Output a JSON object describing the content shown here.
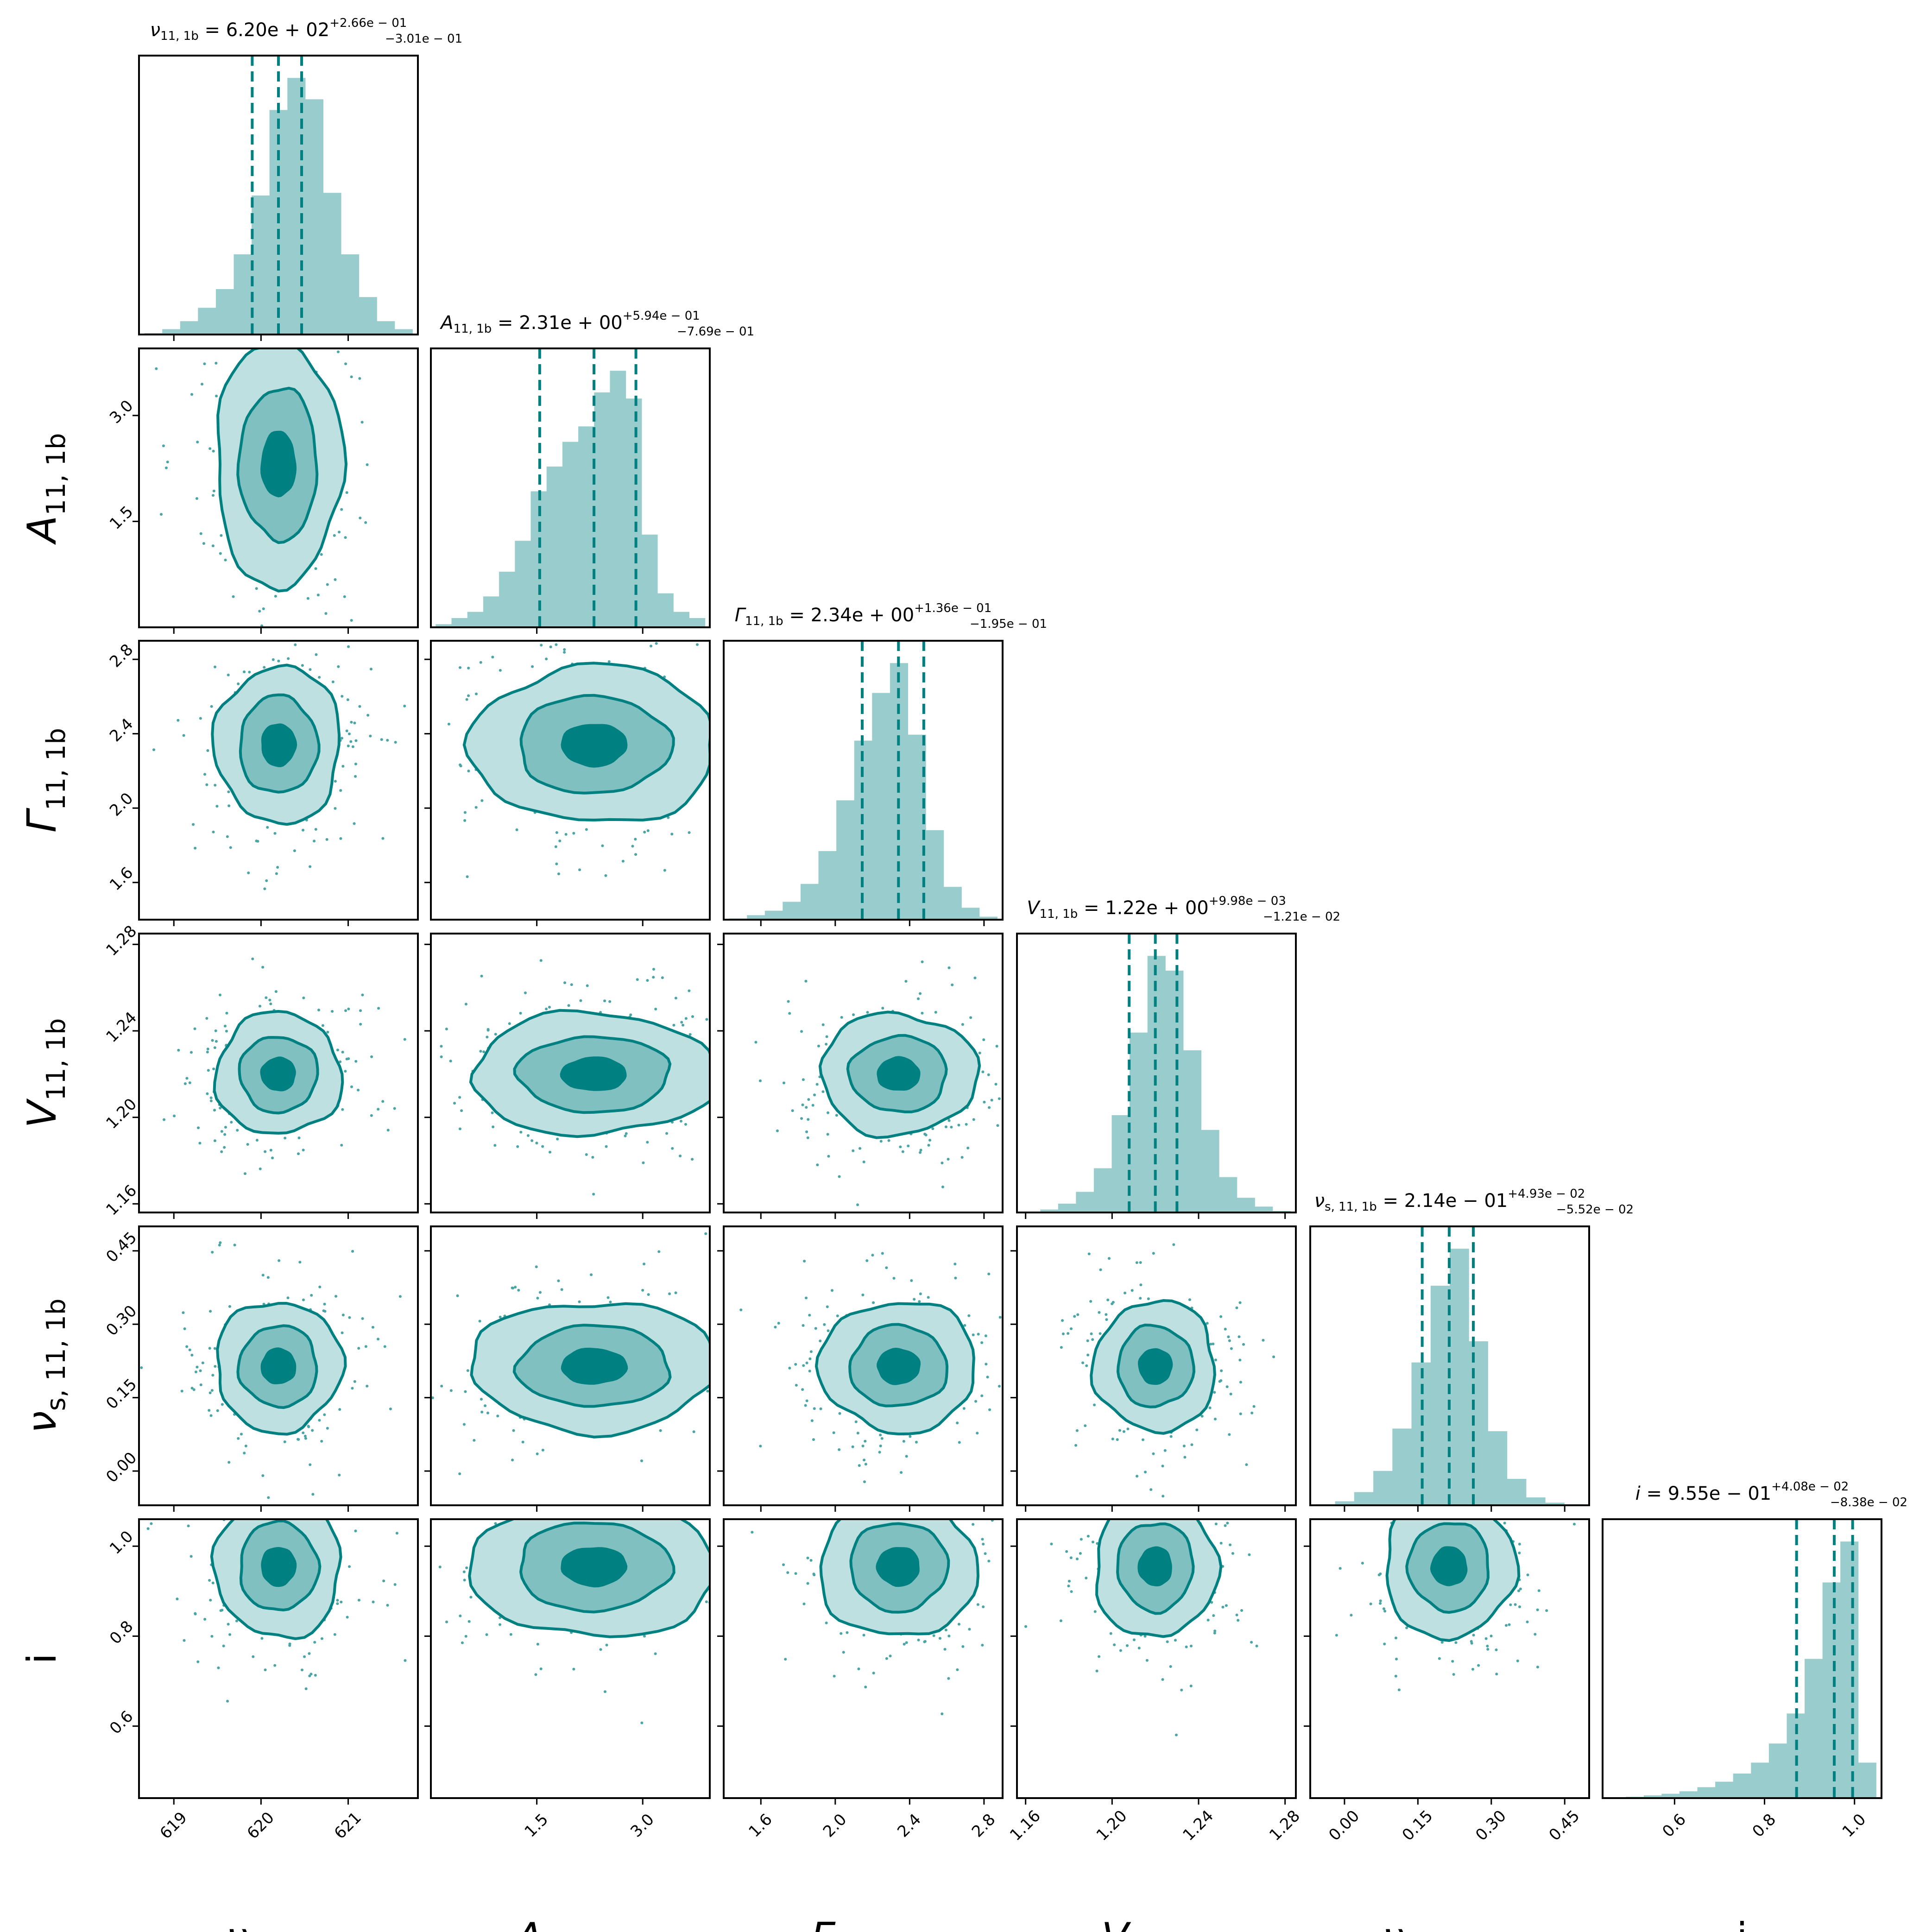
{
  "chart_data": {
    "type": "corner",
    "colors": {
      "accent": "#008080",
      "hist_fill": "#99cccc",
      "level1": "#bfe0e0",
      "level2": "#80c0c0",
      "level3": "#008080",
      "frame": "#000000"
    },
    "parameters": [
      {
        "name": "nu",
        "label_main": "ν",
        "label_sub": "11, 1b",
        "title_sym": "ν",
        "title_sub": "11, 1b",
        "title_value": "6.20e + 02",
        "title_plus": "+2.66e − 01",
        "title_minus": "−3.01e − 01",
        "median": 620.2,
        "q16": 619.899,
        "q84": 620.466,
        "range": [
          618.6,
          621.8
        ],
        "ticks": [
          619,
          620,
          621
        ],
        "tick_labels": [
          "619",
          "620",
          "621"
        ],
        "hist": [
          0.005,
          0.02,
          0.05,
          0.1,
          0.17,
          0.3,
          0.52,
          0.84,
          0.96,
          0.88,
          0.53,
          0.3,
          0.14,
          0.05,
          0.02
        ]
      },
      {
        "name": "A",
        "label_main": "A",
        "label_sub": "11, 1b",
        "title_sym": "A",
        "title_sub": "11, 1b",
        "title_value": "2.31e + 00",
        "title_plus": "+5.94e − 01",
        "title_minus": "−7.69e − 01",
        "median": 2.31,
        "q16": 1.541,
        "q84": 2.904,
        "range": [
          0.0,
          3.95
        ],
        "ticks": [
          1.5,
          3.0
        ],
        "tick_labels": [
          "1.5",
          "3.0"
        ],
        "hist": [
          0.01,
          0.03,
          0.05,
          0.1,
          0.18,
          0.28,
          0.44,
          0.52,
          0.6,
          0.65,
          0.76,
          0.83,
          0.74,
          0.3,
          0.11,
          0.05,
          0.03
        ]
      },
      {
        "name": "Gamma",
        "label_main": "Γ",
        "label_sub": "11, 1b",
        "title_sym": "Γ",
        "title_sub": "11, 1b",
        "title_value": "2.34e + 00",
        "title_plus": "+1.36e − 01",
        "title_minus": "−1.95e − 01",
        "median": 2.34,
        "q16": 2.145,
        "q84": 2.476,
        "range": [
          1.4,
          2.9
        ],
        "ticks": [
          1.6,
          2.0,
          2.4,
          2.8
        ],
        "tick_labels": [
          "1.6",
          "2.0",
          "2.4",
          "2.8"
        ],
        "hist": [
          0.004,
          0.015,
          0.03,
          0.06,
          0.12,
          0.23,
          0.4,
          0.6,
          0.76,
          0.86,
          0.62,
          0.3,
          0.11,
          0.04,
          0.01
        ]
      },
      {
        "name": "V",
        "label_main": "V",
        "label_sub": "11, 1b",
        "title_sym": "V",
        "title_sub": "11, 1b",
        "title_value": "1.22e + 00",
        "title_plus": "+9.98e − 03",
        "title_minus": "−1.21e − 02",
        "median": 1.22,
        "q16": 1.2079,
        "q84": 1.23,
        "range": [
          1.156,
          1.285
        ],
        "ticks": [
          1.16,
          1.2,
          1.24,
          1.28
        ],
        "tick_labels": [
          "1.16",
          "1.20",
          "1.24",
          "1.28"
        ],
        "hist": [
          0.003,
          0.01,
          0.03,
          0.07,
          0.15,
          0.33,
          0.61,
          0.87,
          0.82,
          0.55,
          0.28,
          0.12,
          0.05,
          0.02,
          0.005
        ]
      },
      {
        "name": "nus",
        "label_main": "ν",
        "label_sub": "s, 11, 1b",
        "title_sym": "ν",
        "title_sub": "s, 11, 1b",
        "title_value": "2.14e − 01",
        "title_plus": "+4.93e − 02",
        "title_minus": "−5.52e − 02",
        "median": 0.214,
        "q16": 0.1588,
        "q84": 0.2633,
        "range": [
          -0.07,
          0.5
        ],
        "ticks": [
          0.0,
          0.15,
          0.3,
          0.45
        ],
        "tick_labels": [
          "0.00",
          "0.15",
          "0.30",
          "0.45"
        ],
        "hist": [
          0.004,
          0.015,
          0.05,
          0.13,
          0.29,
          0.54,
          0.83,
          0.97,
          0.62,
          0.28,
          0.1,
          0.03,
          0.01,
          0.004
        ]
      },
      {
        "name": "i",
        "label_main": "i",
        "label_sub": "",
        "title_sym": "i",
        "title_sub": "",
        "title_value": "9.55e − 01",
        "title_plus": "+4.08e − 02",
        "title_minus": "−8.38e − 02",
        "median": 0.955,
        "q16": 0.8712,
        "q84": 0.9958,
        "range": [
          0.44,
          1.06
        ],
        "ticks": [
          0.6,
          0.8,
          1.0
        ],
        "tick_labels": [
          "0.6",
          "0.8",
          "1.0"
        ],
        "hist": [
          0.002,
          0.005,
          0.01,
          0.016,
          0.025,
          0.04,
          0.06,
          0.09,
          0.13,
          0.2,
          0.31,
          0.51,
          0.79,
          0.94,
          0.13
        ]
      }
    ]
  }
}
